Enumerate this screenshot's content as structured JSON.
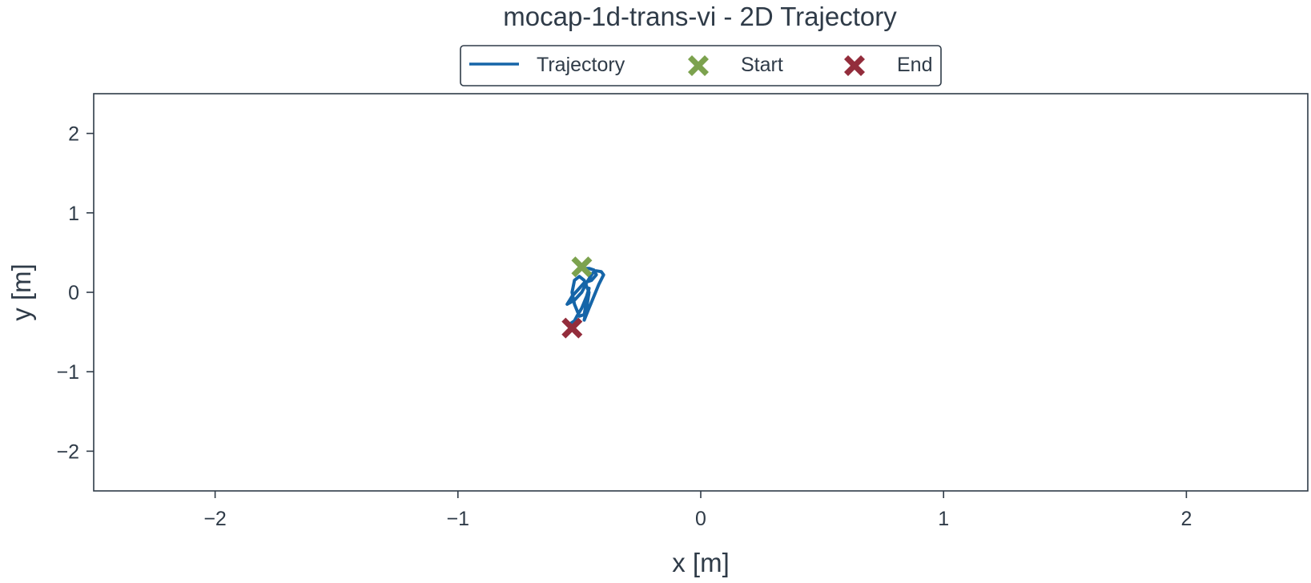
{
  "chart_data": {
    "type": "line",
    "title": "mocap-1d-trans-vi - 2D Trajectory",
    "xlabel": "x [m]",
    "ylabel": "y [m]",
    "xlim": [
      -2.5,
      2.5
    ],
    "ylim": [
      -2.5,
      2.5
    ],
    "xticks": [
      -2,
      -1,
      0,
      1,
      2
    ],
    "yticks": [
      -2,
      -1,
      0,
      1,
      2
    ],
    "xtick_labels": [
      "−2",
      "−1",
      "0",
      "1",
      "2"
    ],
    "ytick_labels": [
      "−2",
      "−1",
      "0",
      "1",
      "2"
    ],
    "grid": false,
    "legend_position": "top-center",
    "series": [
      {
        "name": "Trajectory",
        "color": "#1565a8",
        "x": [
          -0.49,
          -0.46,
          -0.44,
          -0.43,
          -0.45,
          -0.48,
          -0.5,
          -0.53,
          -0.55,
          -0.52,
          -0.49,
          -0.47,
          -0.45,
          -0.44,
          -0.43,
          -0.41,
          -0.4,
          -0.42,
          -0.44,
          -0.46,
          -0.48,
          -0.47,
          -0.46,
          -0.48,
          -0.5,
          -0.52,
          -0.53,
          -0.52,
          -0.5,
          -0.48,
          -0.47,
          -0.46,
          -0.47,
          -0.49,
          -0.51,
          -0.52,
          -0.54,
          -0.53
        ],
        "y": [
          0.3,
          0.3,
          0.28,
          0.22,
          0.15,
          0.12,
          0.05,
          -0.05,
          -0.15,
          -0.1,
          0.0,
          0.12,
          0.22,
          0.26,
          0.27,
          0.26,
          0.22,
          0.1,
          -0.05,
          -0.2,
          -0.35,
          -0.2,
          0.0,
          0.15,
          0.2,
          0.15,
          0.0,
          -0.15,
          -0.3,
          -0.28,
          -0.1,
          0.05,
          -0.05,
          -0.2,
          -0.3,
          -0.36,
          -0.4,
          -0.45
        ]
      }
    ],
    "markers": [
      {
        "name": "Start",
        "x": -0.49,
        "y": 0.32,
        "color": "#7ca24e",
        "symbol": "X"
      },
      {
        "name": "End",
        "x": -0.53,
        "y": -0.45,
        "color": "#932d3c",
        "symbol": "X"
      }
    ]
  }
}
